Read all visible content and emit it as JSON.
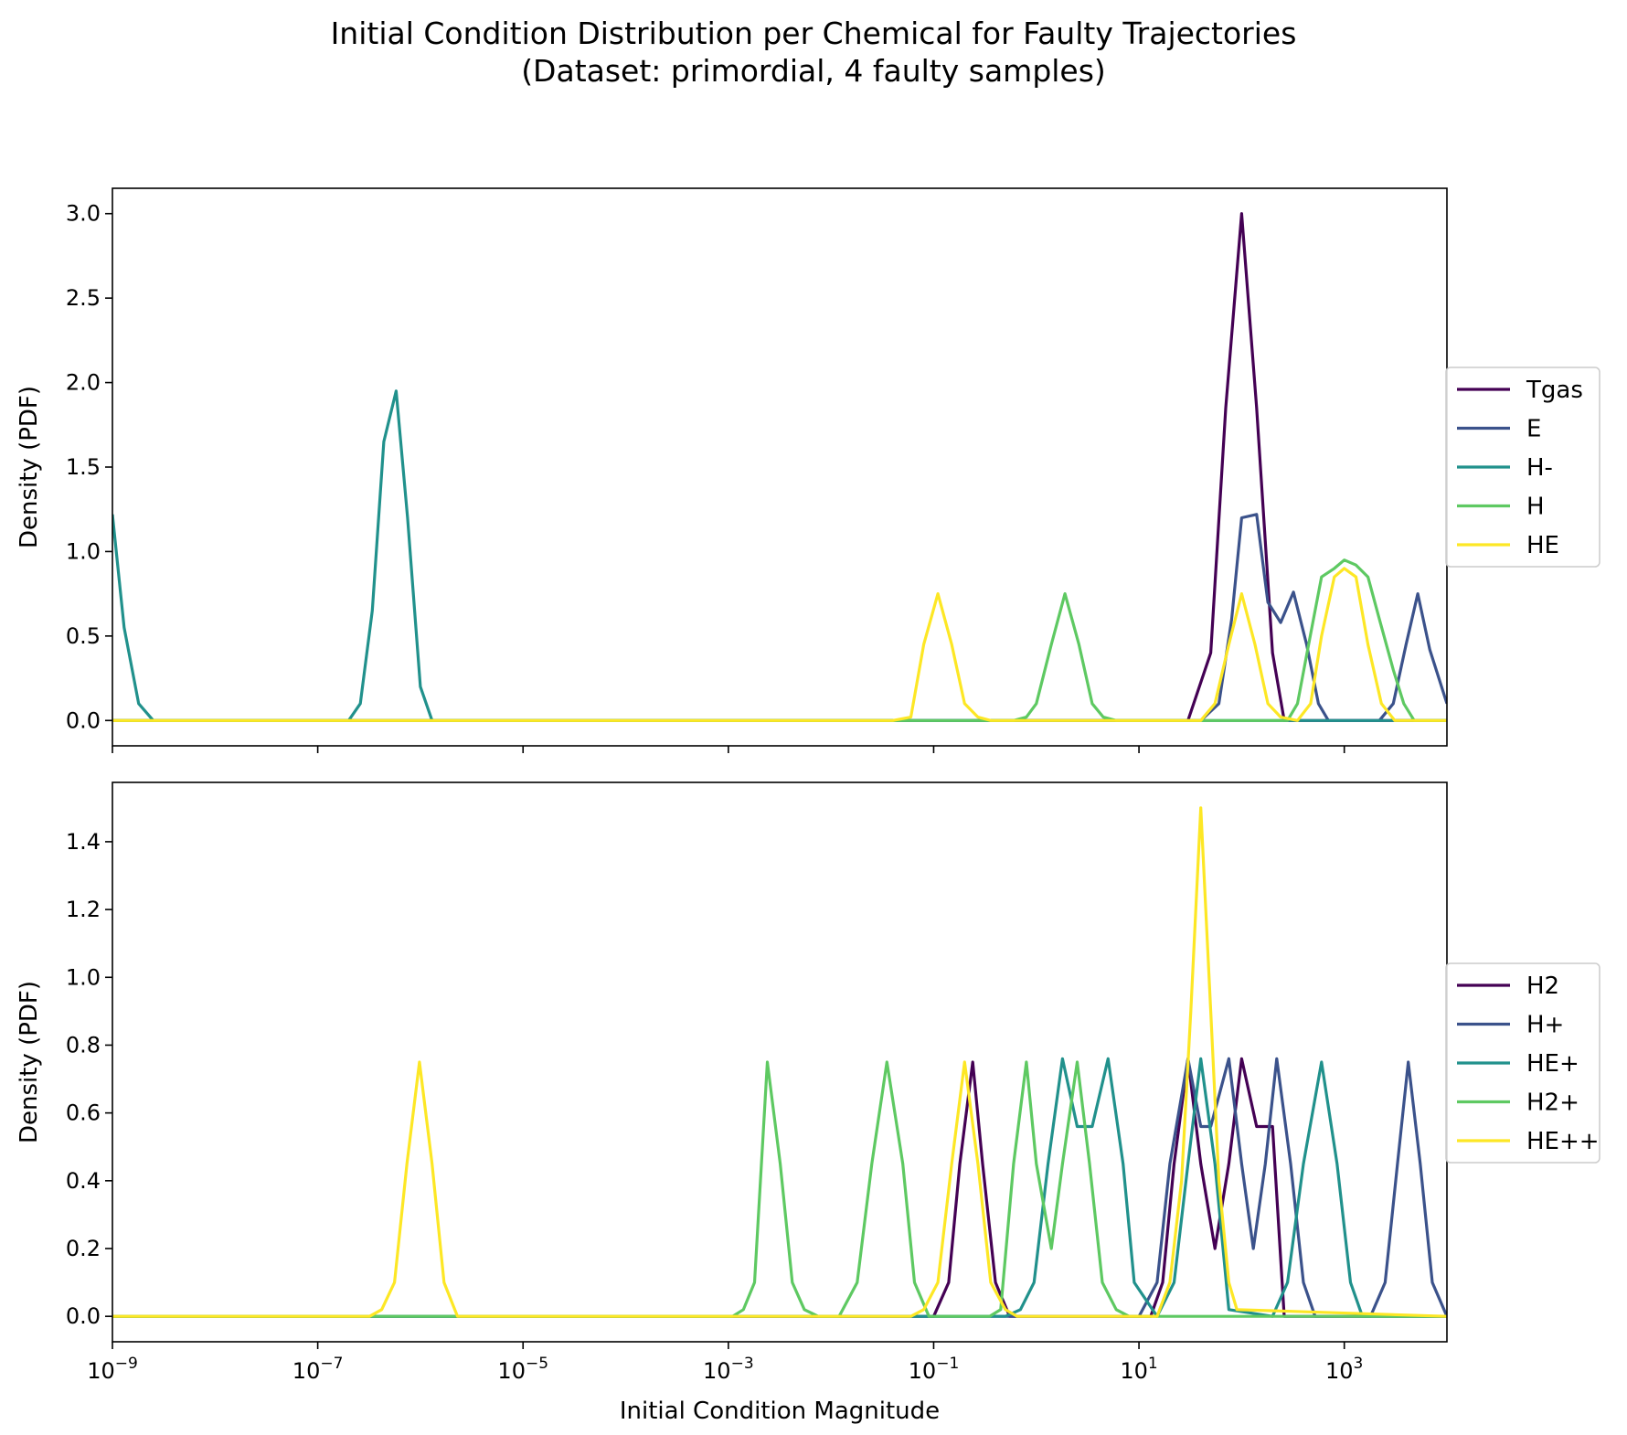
{
  "title_line1": "Initial Condition Distribution per Chemical for Faulty Trajectories",
  "title_line2": "(Dataset: primordial, 4 faulty samples)",
  "chart_data": [
    {
      "type": "line",
      "title": "",
      "xlabel": "",
      "ylabel": "Density (PDF)",
      "xscale": "log",
      "xlim": [
        1e-09,
        10000
      ],
      "ylim": [
        -0.15,
        3.15
      ],
      "x_ticks": [
        {
          "value": 1e-09,
          "base": "10",
          "exp": "−9"
        },
        {
          "value": 1e-07,
          "base": "10",
          "exp": "−7"
        },
        {
          "value": 1e-05,
          "base": "10",
          "exp": "−5"
        },
        {
          "value": 0.001,
          "base": "10",
          "exp": "−3"
        },
        {
          "value": 0.1,
          "base": "10",
          "exp": "−1"
        },
        {
          "value": 10,
          "base": "10",
          "exp": "1"
        },
        {
          "value": 1000,
          "base": "10",
          "exp": "3"
        }
      ],
      "show_x_tick_labels": false,
      "y_ticks": [
        {
          "value": 0,
          "label": "0.0"
        },
        {
          "value": 0.5,
          "label": "0.5"
        },
        {
          "value": 1.0,
          "label": "1.0"
        },
        {
          "value": 1.5,
          "label": "1.5"
        },
        {
          "value": 2.0,
          "label": "2.0"
        },
        {
          "value": 2.5,
          "label": "2.5"
        },
        {
          "value": 3.0,
          "label": "3.0"
        }
      ],
      "grid": false,
      "legend_position": "right",
      "series": [
        {
          "name": "Tgas",
          "color": "#440154",
          "x": [
            1e-09,
            30,
            50,
            70,
            100,
            140,
            200,
            260,
            10000
          ],
          "y": [
            0,
            0,
            0.4,
            1.85,
            3.0,
            1.85,
            0.4,
            0,
            0
          ]
        },
        {
          "name": "E",
          "color": "#3b528b",
          "x": [
            1e-09,
            40,
            60,
            80,
            100,
            140,
            180,
            240,
            320,
            430,
            560,
            700,
            1200,
            2200,
            3000,
            4000,
            5200,
            6800,
            10000
          ],
          "y": [
            0,
            0,
            0.1,
            0.6,
            1.2,
            1.22,
            0.7,
            0.58,
            0.76,
            0.45,
            0.1,
            0,
            0,
            0,
            0.1,
            0.45,
            0.75,
            0.42,
            0.1
          ]
        },
        {
          "name": "H-",
          "color": "#21918c",
          "x": [
            1e-09,
            1.3e-09,
            1.8e-09,
            2.5e-09,
            2e-07,
            2.6e-07,
            3.4e-07,
            4.4e-07,
            5.8e-07,
            7.5e-07,
            1e-06,
            1.3e-06,
            1.7e-06,
            10000
          ],
          "y": [
            1.22,
            0.55,
            0.1,
            0,
            0,
            0.1,
            0.65,
            1.65,
            1.95,
            1.2,
            0.2,
            0,
            0,
            0
          ]
        },
        {
          "name": "H",
          "color": "#5ec962",
          "x": [
            1e-09,
            0.6,
            0.8,
            1.0,
            1.4,
            1.9,
            2.6,
            3.5,
            4.5,
            6,
            280,
            350,
            450,
            600,
            800,
            1000,
            1300,
            1700,
            2200,
            3000,
            3800,
            4800,
            10000
          ],
          "y": [
            0,
            0,
            0.02,
            0.1,
            0.45,
            0.75,
            0.45,
            0.1,
            0.02,
            0,
            0,
            0.1,
            0.45,
            0.85,
            0.9,
            0.95,
            0.92,
            0.85,
            0.6,
            0.3,
            0.1,
            0,
            0
          ]
        },
        {
          "name": "HE",
          "color": "#fde725",
          "x": [
            1e-09,
            0.04,
            0.06,
            0.08,
            0.11,
            0.15,
            0.2,
            0.27,
            0.36,
            40,
            55,
            75,
            100,
            135,
            180,
            240,
            350,
            470,
            600,
            800,
            1000,
            1300,
            1700,
            2300,
            3100,
            4000,
            10000
          ],
          "y": [
            0,
            0,
            0.02,
            0.45,
            0.75,
            0.45,
            0.1,
            0.02,
            0,
            0,
            0.1,
            0.45,
            0.75,
            0.45,
            0.1,
            0.02,
            0,
            0.1,
            0.5,
            0.85,
            0.9,
            0.85,
            0.45,
            0.1,
            0,
            0,
            0
          ]
        }
      ]
    },
    {
      "type": "line",
      "title": "",
      "xlabel": "Initial Condition Magnitude",
      "ylabel": "Density (PDF)",
      "xscale": "log",
      "xlim": [
        1e-09,
        10000
      ],
      "ylim": [
        -0.075,
        1.575
      ],
      "x_ticks": [
        {
          "value": 1e-09,
          "base": "10",
          "exp": "−9"
        },
        {
          "value": 1e-07,
          "base": "10",
          "exp": "−7"
        },
        {
          "value": 1e-05,
          "base": "10",
          "exp": "−5"
        },
        {
          "value": 0.001,
          "base": "10",
          "exp": "−3"
        },
        {
          "value": 0.1,
          "base": "10",
          "exp": "−1"
        },
        {
          "value": 10,
          "base": "10",
          "exp": "1"
        },
        {
          "value": 1000,
          "base": "10",
          "exp": "3"
        }
      ],
      "show_x_tick_labels": true,
      "y_ticks": [
        {
          "value": 0,
          "label": "0.0"
        },
        {
          "value": 0.2,
          "label": "0.2"
        },
        {
          "value": 0.4,
          "label": "0.4"
        },
        {
          "value": 0.6,
          "label": "0.6"
        },
        {
          "value": 0.8,
          "label": "0.8"
        },
        {
          "value": 1.0,
          "label": "1.0"
        },
        {
          "value": 1.2,
          "label": "1.2"
        },
        {
          "value": 1.4,
          "label": "1.4"
        }
      ],
      "grid": false,
      "legend_position": "right",
      "series": [
        {
          "name": "H2",
          "color": "#440154",
          "x": [
            1e-09,
            0.1,
            0.14,
            0.18,
            0.24,
            0.3,
            0.4,
            0.55,
            0.7,
            13,
            17,
            22,
            30,
            40,
            55,
            75,
            100,
            140,
            200,
            260,
            10000
          ],
          "y": [
            0,
            0,
            0.1,
            0.45,
            0.75,
            0.45,
            0.1,
            0,
            0,
            0,
            0.1,
            0.45,
            0.76,
            0.45,
            0.2,
            0.45,
            0.76,
            0.56,
            0.56,
            0,
            0
          ]
        },
        {
          "name": "H+",
          "color": "#3b528b",
          "x": [
            1e-09,
            10,
            15,
            20,
            30,
            40,
            50,
            75,
            100,
            130,
            170,
            220,
            300,
            400,
            520,
            1800,
            2500,
            3300,
            4200,
            5500,
            7200,
            10000
          ],
          "y": [
            0,
            0,
            0.1,
            0.45,
            0.76,
            0.56,
            0.56,
            0.76,
            0.45,
            0.2,
            0.45,
            0.76,
            0.45,
            0.1,
            0,
            0,
            0.1,
            0.45,
            0.75,
            0.45,
            0.1,
            0
          ]
        },
        {
          "name": "HE+",
          "color": "#21918c",
          "x": [
            1e-09,
            0.5,
            0.7,
            0.95,
            1.3,
            1.8,
            2.5,
            3.5,
            5,
            7,
            9,
            15,
            22,
            30,
            40,
            55,
            75,
            200,
            280,
            400,
            600,
            850,
            1150,
            1500,
            10000
          ],
          "y": [
            0,
            0,
            0.02,
            0.1,
            0.45,
            0.76,
            0.56,
            0.56,
            0.76,
            0.45,
            0.1,
            0,
            0.1,
            0.45,
            0.76,
            0.45,
            0.02,
            0,
            0.1,
            0.45,
            0.75,
            0.45,
            0.1,
            0,
            0
          ]
        },
        {
          "name": "H2+",
          "color": "#5ec962",
          "x": [
            1e-09,
            0.0011,
            0.0014,
            0.0018,
            0.0024,
            0.0032,
            0.0042,
            0.0055,
            0.0075,
            0.012,
            0.018,
            0.025,
            0.035,
            0.05,
            0.065,
            0.09,
            0.35,
            0.45,
            0.6,
            0.8,
            1.0,
            1.4,
            1.8,
            2.5,
            3.3,
            4.4,
            6,
            8,
            10000
          ],
          "y": [
            0,
            0,
            0.02,
            0.1,
            0.75,
            0.45,
            0.1,
            0.02,
            0,
            0,
            0.1,
            0.45,
            0.75,
            0.45,
            0.1,
            0,
            0,
            0.02,
            0.45,
            0.75,
            0.45,
            0.2,
            0.45,
            0.75,
            0.45,
            0.1,
            0.02,
            0,
            0
          ]
        },
        {
          "name": "HE++",
          "color": "#fde725",
          "x": [
            1e-09,
            3.2e-07,
            4.2e-07,
            5.6e-07,
            7.4e-07,
            9.8e-07,
            1.3e-06,
            1.7e-06,
            2.3e-06,
            0.06,
            0.08,
            0.11,
            0.15,
            0.2,
            0.27,
            0.36,
            0.5,
            0.65,
            15,
            20,
            26,
            32,
            40,
            50,
            60,
            75,
            90,
            10000
          ],
          "y": [
            0,
            0,
            0.02,
            0.1,
            0.45,
            0.75,
            0.45,
            0.1,
            0,
            0,
            0.02,
            0.1,
            0.45,
            0.75,
            0.45,
            0.1,
            0.02,
            0,
            0,
            0.1,
            0.4,
            0.9,
            1.5,
            0.9,
            0.4,
            0.1,
            0.02,
            0
          ]
        }
      ]
    }
  ]
}
